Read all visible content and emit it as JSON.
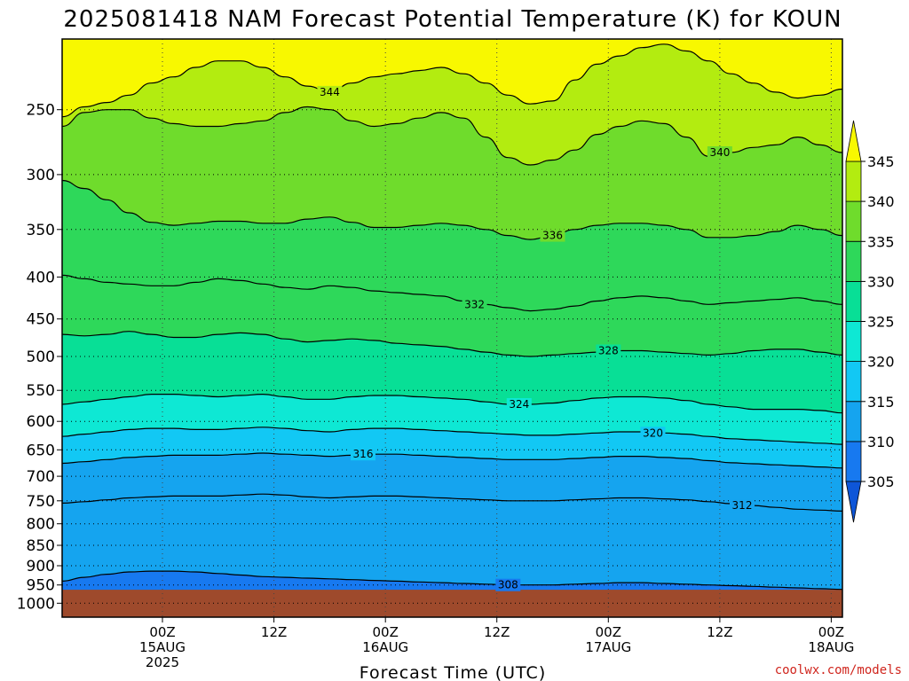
{
  "chart_data": {
    "type": "heatmap",
    "title": "2025081418 NAM Forecast Potential Temperature (K) for KOUN",
    "xlabel": "Forecast Time (UTC)",
    "ylabel": "",
    "credit": "coolwx.com/models",
    "y_axis": {
      "scale": "log",
      "reversed": true,
      "range": [
        1040,
        205
      ],
      "ticks": [
        250,
        300,
        350,
        400,
        450,
        500,
        550,
        600,
        650,
        700,
        750,
        800,
        850,
        900,
        950,
        1000
      ],
      "tick_labels": [
        "250",
        "300",
        "350",
        "400",
        "450",
        "500",
        "550",
        "600",
        "650",
        "700",
        "750",
        "800",
        "850",
        "900",
        "950",
        "1000"
      ]
    },
    "x_axis": {
      "unit": "hours",
      "range": [
        -9,
        61
      ],
      "ticks": [
        {
          "hour": 0,
          "lines": [
            "00Z",
            "15AUG",
            "2025"
          ]
        },
        {
          "hour": 10,
          "lines": [
            "12Z"
          ]
        },
        {
          "hour": 20,
          "lines": [
            "00Z",
            "16AUG"
          ]
        },
        {
          "hour": 30,
          "lines": [
            "12Z"
          ]
        },
        {
          "hour": 40,
          "lines": [
            "00Z",
            "17AUG"
          ]
        },
        {
          "hour": 50,
          "lines": [
            "12Z"
          ]
        },
        {
          "hour": 60,
          "lines": [
            "00Z",
            "18AUG"
          ]
        }
      ]
    },
    "grid": "dotted",
    "colorbar": {
      "levels": [
        305,
        310,
        315,
        320,
        325,
        330,
        335,
        340,
        345
      ],
      "tick_labels": [
        "305",
        "310",
        "315",
        "320",
        "325",
        "330",
        "335",
        "340",
        "345"
      ],
      "colors": [
        "#0e56d8",
        "#1779f0",
        "#15a4ef",
        "#12c8f4",
        "#0ee8d4",
        "#08df96",
        "#2ed85a",
        "#6fdc2c",
        "#b3ec10",
        "#f8f800"
      ],
      "extend": "both"
    },
    "ground_color": "#9e4a2c",
    "contour_levels": [
      304,
      306,
      308,
      310,
      312,
      314,
      316,
      318,
      320,
      322,
      324,
      326,
      328,
      330,
      332,
      334,
      336,
      338,
      340,
      342,
      344
    ],
    "isentropes": [
      {
        "theta": 344,
        "p": [
          255,
          248,
          245,
          240,
          232,
          228,
          222,
          218,
          218,
          222,
          228,
          234,
          238,
          232,
          228,
          226,
          224,
          222,
          226,
          232,
          240,
          246,
          244,
          230,
          220,
          215,
          210,
          208,
          212,
          218,
          226,
          232,
          238,
          242,
          240,
          236
        ],
        "label_hour": 15
      },
      {
        "theta": 340,
        "p": [
          262,
          252,
          250,
          250,
          256,
          260,
          262,
          262,
          260,
          258,
          252,
          248,
          250,
          258,
          262,
          260,
          256,
          252,
          256,
          270,
          286,
          292,
          288,
          280,
          268,
          262,
          258,
          260,
          270,
          285,
          282,
          278,
          276,
          270,
          276,
          282
        ],
        "label_hour": 50
      },
      {
        "theta": 336,
        "p": [
          305,
          312,
          322,
          334,
          343,
          346,
          344,
          342,
          342,
          344,
          344,
          340,
          338,
          343,
          348,
          348,
          346,
          344,
          346,
          350,
          356,
          360,
          356,
          350,
          346,
          344,
          344,
          346,
          350,
          358,
          358,
          356,
          352,
          346,
          350,
          356
        ],
        "label_hour": 35
      },
      {
        "theta": 332,
        "p": [
          398,
          402,
          406,
          408,
          410,
          410,
          406,
          402,
          404,
          408,
          412,
          414,
          410,
          412,
          416,
          418,
          420,
          422,
          428,
          432,
          436,
          440,
          438,
          434,
          428,
          424,
          422,
          424,
          428,
          432,
          430,
          428,
          426,
          424,
          428,
          432
        ],
        "label_hour": 28
      },
      {
        "theta": 328,
        "p": [
          470,
          472,
          470,
          466,
          470,
          474,
          474,
          470,
          468,
          470,
          476,
          480,
          478,
          476,
          478,
          482,
          484,
          486,
          490,
          494,
          498,
          500,
          498,
          496,
          494,
          492,
          492,
          494,
          496,
          498,
          496,
          492,
          490,
          490,
          494,
          498
        ],
        "label_hour": 40
      },
      {
        "theta": 324,
        "p": [
          572,
          568,
          564,
          560,
          556,
          556,
          558,
          560,
          558,
          556,
          560,
          564,
          564,
          560,
          558,
          558,
          560,
          562,
          564,
          568,
          572,
          572,
          570,
          566,
          562,
          560,
          560,
          562,
          566,
          572,
          576,
          580,
          580,
          580,
          582,
          586
        ],
        "label_hour": 32
      },
      {
        "theta": 320,
        "p": [
          626,
          622,
          618,
          614,
          612,
          612,
          614,
          614,
          612,
          610,
          612,
          616,
          618,
          614,
          612,
          612,
          614,
          616,
          618,
          620,
          622,
          624,
          624,
          622,
          620,
          618,
          618,
          620,
          622,
          626,
          630,
          632,
          634,
          636,
          638,
          640
        ],
        "label_hour": 44
      },
      {
        "theta": 316,
        "p": [
          675,
          672,
          668,
          664,
          662,
          660,
          660,
          660,
          658,
          656,
          658,
          660,
          662,
          660,
          658,
          658,
          660,
          662,
          664,
          666,
          668,
          668,
          668,
          666,
          664,
          662,
          662,
          664,
          666,
          670,
          674,
          676,
          678,
          680,
          682,
          684
        ],
        "label_hour": 18
      },
      {
        "theta": 312,
        "p": [
          755,
          752,
          748,
          744,
          742,
          740,
          740,
          740,
          738,
          736,
          738,
          742,
          744,
          742,
          740,
          740,
          742,
          744,
          746,
          748,
          750,
          750,
          750,
          748,
          746,
          744,
          744,
          746,
          748,
          752,
          756,
          760,
          764,
          768,
          770,
          772
        ],
        "label_hour": 52
      },
      {
        "theta": 308,
        "p": [
          940,
          930,
          922,
          916,
          914,
          914,
          916,
          920,
          924,
          928,
          930,
          932,
          934,
          936,
          938,
          940,
          942,
          944,
          946,
          948,
          950,
          950,
          950,
          948,
          946,
          944,
          944,
          946,
          948,
          950,
          952,
          954,
          956,
          958,
          960,
          962
        ],
        "label_hour": 31
      }
    ]
  }
}
